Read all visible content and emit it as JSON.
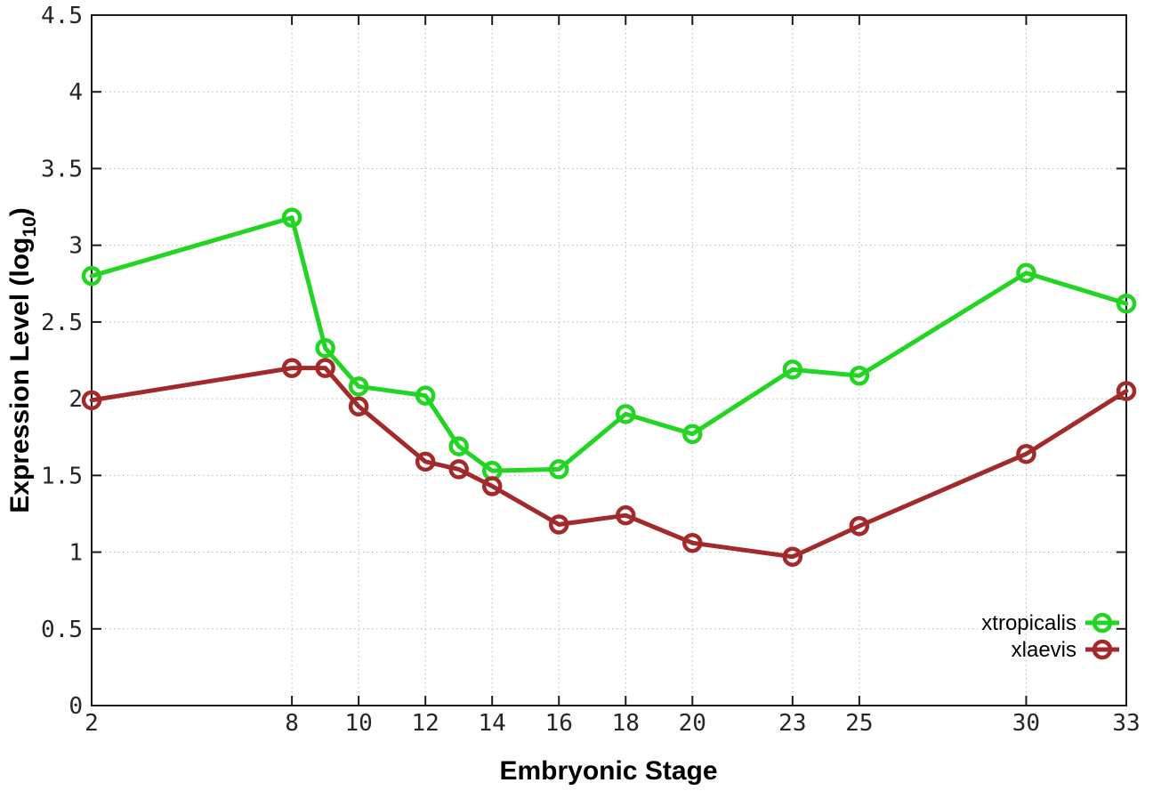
{
  "chart_data": {
    "type": "line",
    "title": "",
    "xlabel": "Embryonic Stage",
    "ylabel": "Expression Level (log10)",
    "ylabel_parts": {
      "prefix": "Expression Level (log",
      "subscript": "10",
      "suffix": ")"
    },
    "x": [
      2,
      8,
      9,
      10,
      12,
      13,
      14,
      16,
      18,
      20,
      23,
      25,
      30,
      33
    ],
    "xticks": [
      2,
      8,
      10,
      12,
      14,
      16,
      18,
      20,
      23,
      25,
      30,
      33
    ],
    "yticks": [
      0,
      0.5,
      1,
      1.5,
      2,
      2.5,
      3,
      3.5,
      4,
      4.5
    ],
    "xlim": [
      2,
      33
    ],
    "ylim": [
      0,
      4.5
    ],
    "grid": true,
    "marker": "open-circle",
    "legend_position": "inside-bottom-right",
    "series": [
      {
        "name": "xtropicalis",
        "color": "#23d523",
        "values": [
          2.8,
          3.18,
          2.33,
          2.08,
          2.02,
          1.69,
          1.53,
          1.54,
          1.9,
          1.77,
          2.19,
          2.15,
          2.82,
          2.62
        ]
      },
      {
        "name": "xlaevis",
        "color": "#a32a2a",
        "values": [
          1.99,
          2.2,
          2.2,
          1.95,
          1.59,
          1.54,
          1.43,
          1.18,
          1.24,
          1.06,
          0.97,
          1.17,
          1.64,
          2.05
        ]
      }
    ]
  }
}
